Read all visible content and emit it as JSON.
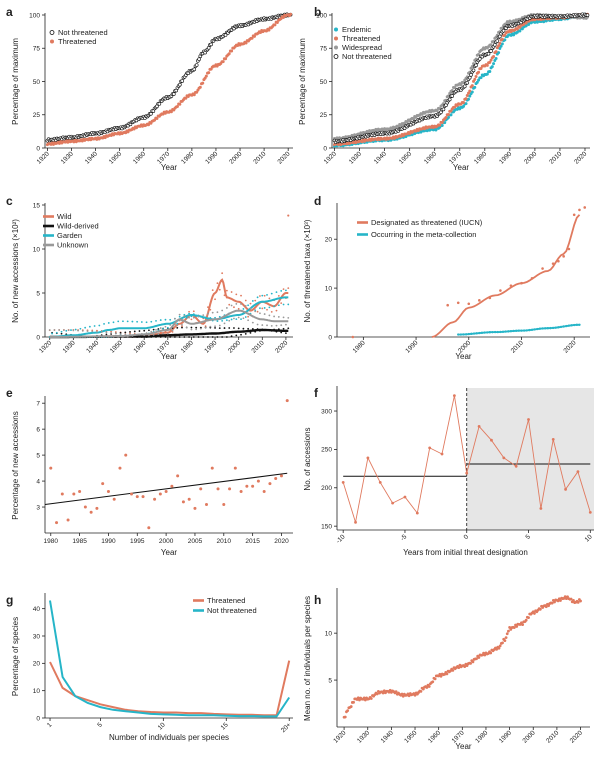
{
  "chart_data": [
    {
      "panel": "a",
      "type": "scatter",
      "xlabel": "Year",
      "ylabel": "Percentage of maximum",
      "xlim": [
        1919,
        2022
      ],
      "ylim": [
        0,
        100
      ],
      "xticks": [
        1920,
        1930,
        1940,
        1950,
        1960,
        1970,
        1980,
        1990,
        2000,
        2010,
        2020
      ],
      "yticks": [
        0,
        25,
        50,
        75,
        100
      ],
      "legend": "top-left",
      "series": [
        {
          "name": "Not threatened",
          "color": "#111111",
          "style": "open",
          "knots": [
            [
              1920,
              6
            ],
            [
              1930,
              8
            ],
            [
              1940,
              11
            ],
            [
              1950,
              15
            ],
            [
              1960,
              23
            ],
            [
              1970,
              38
            ],
            [
              1980,
              58
            ],
            [
              1985,
              72
            ],
            [
              1990,
              82
            ],
            [
              2000,
              92
            ],
            [
              2010,
              97
            ],
            [
              2020,
              100
            ]
          ]
        },
        {
          "name": "Threatened",
          "color": "#e07a5f",
          "style": "filled",
          "knots": [
            [
              1920,
              3
            ],
            [
              1930,
              5
            ],
            [
              1940,
              7
            ],
            [
              1950,
              11
            ],
            [
              1960,
              17
            ],
            [
              1970,
              27
            ],
            [
              1980,
              40
            ],
            [
              1990,
              62
            ],
            [
              2000,
              78
            ],
            [
              2010,
              88
            ],
            [
              2020,
              100
            ]
          ]
        }
      ]
    },
    {
      "panel": "b",
      "type": "scatter",
      "xlabel": "Year",
      "ylabel": "Percentage of maximum",
      "xlim": [
        1919,
        2022
      ],
      "ylim": [
        0,
        100
      ],
      "xticks": [
        1920,
        1930,
        1940,
        1950,
        1960,
        1970,
        1980,
        1990,
        2000,
        2010,
        2020
      ],
      "yticks": [
        0,
        25,
        50,
        75,
        100
      ],
      "legend": "top-left",
      "series": [
        {
          "name": "Endemic",
          "color": "#26b5c8",
          "style": "filled",
          "knots": [
            [
              1920,
              2
            ],
            [
              1940,
              6
            ],
            [
              1960,
              14
            ],
            [
              1970,
              30
            ],
            [
              1980,
              55
            ],
            [
              1990,
              85
            ],
            [
              2000,
              95
            ],
            [
              2010,
              97
            ],
            [
              2020,
              100
            ]
          ]
        },
        {
          "name": "Threatened",
          "color": "#e07a5f",
          "style": "filled",
          "knots": [
            [
              1920,
              3
            ],
            [
              1940,
              7
            ],
            [
              1960,
              16
            ],
            [
              1970,
              33
            ],
            [
              1980,
              62
            ],
            [
              1990,
              88
            ],
            [
              2000,
              97
            ],
            [
              2010,
              98
            ],
            [
              2020,
              100
            ]
          ]
        },
        {
          "name": "Widespread",
          "color": "#999999",
          "style": "filled",
          "knots": [
            [
              1920,
              7
            ],
            [
              1940,
              14
            ],
            [
              1960,
              28
            ],
            [
              1970,
              48
            ],
            [
              1980,
              75
            ],
            [
              1990,
              95
            ],
            [
              2000,
              100
            ],
            [
              2010,
              99
            ],
            [
              2020,
              98
            ]
          ]
        },
        {
          "name": "Not threatened",
          "color": "#111111",
          "style": "open",
          "knots": [
            [
              1920,
              5
            ],
            [
              1940,
              11
            ],
            [
              1960,
              24
            ],
            [
              1970,
              44
            ],
            [
              1980,
              70
            ],
            [
              1990,
              92
            ],
            [
              2000,
              99
            ],
            [
              2010,
              99
            ],
            [
              2020,
              100
            ]
          ]
        }
      ]
    },
    {
      "panel": "c",
      "type": "line",
      "xlabel": "Year",
      "ylabel": "No. of new accessions (×10²)",
      "xlim": [
        1918,
        2023
      ],
      "ylim": [
        0,
        15
      ],
      "xticks": [
        1920,
        1930,
        1940,
        1950,
        1960,
        1970,
        1980,
        1990,
        2000,
        2010,
        2020
      ],
      "yticks": [
        0,
        5,
        10,
        15
      ],
      "legend": "top-left",
      "series": [
        {
          "name": "Wild",
          "color": "#e07a5f",
          "knots": [
            [
              1920,
              0
            ],
            [
              1960,
              0.1
            ],
            [
              1970,
              0.5
            ],
            [
              1975,
              1.5
            ],
            [
              1980,
              2.5
            ],
            [
              1985,
              1.5
            ],
            [
              1990,
              5
            ],
            [
              1993,
              6.5
            ],
            [
              1995,
              4.5
            ],
            [
              2000,
              4
            ],
            [
              2005,
              3
            ],
            [
              2010,
              4
            ],
            [
              2015,
              3.5
            ],
            [
              2020,
              5
            ]
          ],
          "outlier": [
            2021,
            13.8
          ]
        },
        {
          "name": "Wild-derived",
          "color": "#111111",
          "knots": [
            [
              1920,
              0
            ],
            [
              1960,
              0.05
            ],
            [
              1970,
              0.2
            ],
            [
              1980,
              0.3
            ],
            [
              1990,
              0.4
            ],
            [
              2000,
              0.6
            ],
            [
              2010,
              0.8
            ],
            [
              2020,
              0.7
            ]
          ]
        },
        {
          "name": "Garden",
          "color": "#26b5c8",
          "knots": [
            [
              1920,
              0
            ],
            [
              1930,
              0.2
            ],
            [
              1940,
              0.5
            ],
            [
              1945,
              0.8
            ],
            [
              1950,
              1
            ],
            [
              1960,
              1
            ],
            [
              1970,
              1.5
            ],
            [
              1980,
              2.5
            ],
            [
              1990,
              2
            ],
            [
              2000,
              2.5
            ],
            [
              2010,
              4
            ],
            [
              2020,
              4.5
            ]
          ]
        },
        {
          "name": "Unknown",
          "color": "#999999",
          "knots": [
            [
              1920,
              0
            ],
            [
              1950,
              0.1
            ],
            [
              1960,
              0.3
            ],
            [
              1970,
              0.8
            ],
            [
              1975,
              2
            ],
            [
              1980,
              1.5
            ],
            [
              1990,
              2
            ],
            [
              2000,
              3
            ],
            [
              2010,
              2
            ],
            [
              2015,
              1.8
            ],
            [
              2020,
              1.8
            ]
          ]
        }
      ]
    },
    {
      "panel": "d",
      "type": "scatter",
      "xlabel": "",
      "ylabel": "No. of threatened taxa (×10³)",
      "xlim": [
        1975,
        2023
      ],
      "ylim": [
        0,
        27
      ],
      "xticks": [
        1980,
        1990,
        2000,
        2010,
        2020
      ],
      "yticks": [
        0,
        10,
        20
      ],
      "legend": "top-left",
      "series": [
        {
          "name": "Designated as threatened (IUCN)",
          "color": "#e07a5f",
          "curve": [
            [
              1993,
              0
            ],
            [
              1997,
              3
            ],
            [
              2000,
              6
            ],
            [
              2005,
              8.5
            ],
            [
              2010,
              11
            ],
            [
              2015,
              13.5
            ],
            [
              2018,
              17
            ],
            [
              2021,
              25
            ]
          ],
          "points": [
            [
              1978,
              0
            ],
            [
              1996,
              6.5
            ],
            [
              1998,
              7
            ],
            [
              2000,
              6.8
            ],
            [
              2002,
              7.5
            ],
            [
              2004,
              8
            ],
            [
              2006,
              9.5
            ],
            [
              2008,
              10.5
            ],
            [
              2010,
              11
            ],
            [
              2012,
              12
            ],
            [
              2014,
              14
            ],
            [
              2016,
              15
            ],
            [
              2017,
              15.5
            ],
            [
              2018,
              16.5
            ],
            [
              2019,
              18
            ],
            [
              2020,
              25
            ],
            [
              2021,
              26
            ],
            [
              2022,
              26.5
            ]
          ]
        },
        {
          "name": "Occurring in the meta-collection",
          "color": "#26b5c8",
          "curve": [
            [
              1998,
              0.5
            ],
            [
              2005,
              1
            ],
            [
              2010,
              1.3
            ],
            [
              2015,
              1.8
            ],
            [
              2021,
              2.5
            ]
          ]
        }
      ]
    },
    {
      "panel": "e",
      "type": "scatter",
      "xlabel": "Year",
      "ylabel": "Percentage of new accessions",
      "xlim": [
        1979,
        2022
      ],
      "ylim": [
        2,
        7.2
      ],
      "xticks": [
        1980,
        1985,
        1990,
        1995,
        2000,
        2005,
        2010,
        2015,
        2020
      ],
      "yticks": [
        3,
        4,
        5,
        6,
        7
      ],
      "trend": [
        [
          1979,
          3.1
        ],
        [
          2021,
          4.3
        ]
      ],
      "points": [
        [
          1980,
          4.5
        ],
        [
          1981,
          2.4
        ],
        [
          1982,
          3.5
        ],
        [
          1983,
          2.5
        ],
        [
          1984,
          3.5
        ],
        [
          1985,
          3.6
        ],
        [
          1986,
          3
        ],
        [
          1987,
          2.8
        ],
        [
          1988,
          2.95
        ],
        [
          1989,
          3.9
        ],
        [
          1990,
          3.6
        ],
        [
          1991,
          3.3
        ],
        [
          1992,
          4.5
        ],
        [
          1993,
          5
        ],
        [
          1994,
          3.5
        ],
        [
          1995,
          3.4
        ],
        [
          1996,
          3.4
        ],
        [
          1997,
          2.2
        ],
        [
          1998,
          3.3
        ],
        [
          1999,
          3.5
        ],
        [
          2000,
          3.6
        ],
        [
          2001,
          3.8
        ],
        [
          2002,
          4.2
        ],
        [
          2003,
          3.2
        ],
        [
          2004,
          3.3
        ],
        [
          2005,
          2.95
        ],
        [
          2006,
          3.7
        ],
        [
          2007,
          3.1
        ],
        [
          2008,
          4.5
        ],
        [
          2009,
          3.7
        ],
        [
          2010,
          3.1
        ],
        [
          2011,
          3.7
        ],
        [
          2012,
          4.5
        ],
        [
          2013,
          3.6
        ],
        [
          2014,
          3.8
        ],
        [
          2015,
          3.8
        ],
        [
          2016,
          4
        ],
        [
          2017,
          3.6
        ],
        [
          2018,
          3.9
        ],
        [
          2019,
          4.1
        ],
        [
          2020,
          4.2
        ],
        [
          2021,
          7.1
        ]
      ],
      "color": "#e07a5f"
    },
    {
      "panel": "f",
      "type": "line",
      "xlabel": "Years from initial threat designation",
      "ylabel": "No. of accessions",
      "xlim": [
        -10.5,
        10.3
      ],
      "ylim": [
        145,
        330
      ],
      "xticks": [
        -10,
        -5,
        0,
        5,
        10
      ],
      "yticks": [
        150,
        200,
        250,
        300
      ],
      "x": [
        -10,
        -9,
        -8,
        -7,
        -6,
        -5,
        -4,
        -3,
        -2,
        -1,
        0,
        1,
        2,
        3,
        4,
        5,
        6,
        7,
        8,
        9,
        10
      ],
      "values": [
        207,
        155,
        239,
        207,
        180,
        188,
        167,
        252,
        244,
        320,
        219,
        280,
        262,
        239,
        228,
        289,
        173,
        263,
        198,
        221,
        168
      ],
      "mean_before": 215,
      "mean_after": 231,
      "color": "#e07a5f"
    },
    {
      "panel": "g",
      "type": "line",
      "xlabel": "Number of individuals per species",
      "ylabel": "Percentage of species",
      "xlim": [
        0.6,
        20.3
      ],
      "ylim": [
        0,
        45
      ],
      "xticks": [
        1,
        5,
        10,
        15,
        "20+"
      ],
      "yticks": [
        0,
        10,
        20,
        30,
        40
      ],
      "legend": "top-right",
      "categories": [
        1,
        2,
        3,
        4,
        5,
        6,
        7,
        8,
        9,
        10,
        11,
        12,
        13,
        14,
        15,
        16,
        17,
        18,
        19,
        20
      ],
      "series": [
        {
          "name": "Threatened",
          "color": "#e07a5f",
          "values": [
            20.5,
            11,
            8,
            6.5,
            5,
            4,
            3,
            2.5,
            2.2,
            2,
            2,
            1.8,
            1.8,
            1.5,
            1.3,
            1.2,
            1.2,
            1,
            1,
            21
          ]
        },
        {
          "name": "Not threatened",
          "color": "#26b5c8",
          "values": [
            43,
            15,
            8,
            5.5,
            4,
            3,
            2.5,
            2,
            1.5,
            1.3,
            1.2,
            1,
            1,
            1,
            0.8,
            0.7,
            0.7,
            0.6,
            0.6,
            7.5
          ]
        }
      ]
    },
    {
      "panel": "h",
      "type": "scatter",
      "xlabel": "Year",
      "ylabel": "Mean no. of individuals per species",
      "xlim": [
        1917,
        2024
      ],
      "ylim": [
        0,
        14.6
      ],
      "xticks": [
        1920,
        1930,
        1940,
        1950,
        1960,
        1970,
        1980,
        1990,
        2000,
        2010,
        2020
      ],
      "yticks": [
        5,
        10
      ],
      "knots": [
        [
          1920,
          1
        ],
        [
          1922,
          2
        ],
        [
          1925,
          3
        ],
        [
          1930,
          3
        ],
        [
          1935,
          3.7
        ],
        [
          1940,
          3.8
        ],
        [
          1945,
          3.4
        ],
        [
          1950,
          3.5
        ],
        [
          1955,
          4.3
        ],
        [
          1960,
          5.5
        ],
        [
          1970,
          6.5
        ],
        [
          1980,
          7.8
        ],
        [
          1985,
          8.4
        ],
        [
          1988,
          9.3
        ],
        [
          1990,
          10.5
        ],
        [
          1995,
          11
        ],
        [
          2000,
          12.2
        ],
        [
          2005,
          12.9
        ],
        [
          2010,
          13.5
        ],
        [
          2014,
          13.8
        ],
        [
          2018,
          13.3
        ],
        [
          2020,
          13.5
        ]
      ],
      "color": "#e07a5f"
    }
  ]
}
